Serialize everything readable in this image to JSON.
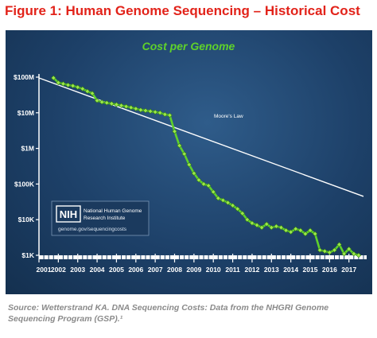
{
  "figure": {
    "title": "Figure 1: Human Genome Sequencing – Historical Cost",
    "source": "Source: Wetterstrand KA. DNA Sequencing Costs: Data from the NHGRI Genome Sequencing Program (GSP).¹"
  },
  "logo": {
    "mark": "NIH",
    "name_line1": "National Human Genome",
    "name_line2": "Research Institute",
    "url": "genome.gov/sequencingcosts"
  },
  "colors": {
    "title": "#e2231a",
    "series_line": "#5fd12b",
    "series_marker": "#9be64a",
    "moores_line": "#ffffff",
    "chart_title": "#5fd12b"
  },
  "chart_data": {
    "type": "line",
    "title": "Cost per Genome",
    "xlabel": "",
    "ylabel": "",
    "y_scale": "log",
    "ylim": [
      1000,
      100000000
    ],
    "xlim": [
      2001.0,
      2017.75
    ],
    "grid": false,
    "y_ticks": [
      {
        "value": 100000000,
        "label": "$100M"
      },
      {
        "value": 10000000,
        "label": "$10M"
      },
      {
        "value": 1000000,
        "label": "$1M"
      },
      {
        "value": 100000,
        "label": "$100K"
      },
      {
        "value": 10000,
        "label": "$10K"
      },
      {
        "value": 1000,
        "label": "$1K"
      }
    ],
    "x_ticks": [
      "2001",
      "2002",
      "2003",
      "2004",
      "2005",
      "2006",
      "2007",
      "2008",
      "2009",
      "2010",
      "2011",
      "2012",
      "2013",
      "2014",
      "2015",
      "2016",
      "2017"
    ],
    "series": [
      {
        "name": "",
        "x": [
          2001.75,
          2002.0,
          2002.25,
          2002.5,
          2002.75,
          2003.0,
          2003.25,
          2003.5,
          2003.75,
          2004.0,
          2004.25,
          2004.5,
          2004.75,
          2005.0,
          2005.25,
          2005.5,
          2005.75,
          2006.0,
          2006.25,
          2006.5,
          2006.75,
          2007.0,
          2007.25,
          2007.5,
          2007.75,
          2008.0,
          2008.25,
          2008.5,
          2008.75,
          2009.0,
          2009.25,
          2009.5,
          2009.75,
          2010.0,
          2010.25,
          2010.5,
          2010.75,
          2011.0,
          2011.25,
          2011.5,
          2011.75,
          2012.0,
          2012.25,
          2012.5,
          2012.75,
          2013.0,
          2013.25,
          2013.5,
          2013.75,
          2014.0,
          2014.25,
          2014.5,
          2014.75,
          2015.0,
          2015.25,
          2015.5,
          2015.75,
          2016.0,
          2016.25,
          2016.5,
          2016.75,
          2017.0,
          2017.25,
          2017.5
        ],
        "values": [
          95000000,
          70000000,
          65000000,
          60000000,
          57000000,
          52000000,
          47000000,
          40000000,
          35000000,
          22000000,
          20000000,
          19000000,
          18000000,
          17000000,
          16000000,
          15000000,
          14000000,
          13000000,
          12000000,
          11500000,
          11000000,
          10500000,
          10000000,
          9000000,
          8500000,
          3000000,
          1200000,
          700000,
          350000,
          200000,
          130000,
          100000,
          90000,
          60000,
          40000,
          35000,
          30000,
          25000,
          20000,
          15000,
          10000,
          8000,
          7000,
          6000,
          7500,
          6000,
          6500,
          6000,
          5000,
          4500,
          5500,
          5000,
          4000,
          5000,
          4000,
          1400,
          1300,
          1200,
          1400,
          2000,
          1100,
          1500,
          1100,
          1000
        ]
      },
      {
        "name": "Moore's Law",
        "x": [
          2001.0,
          2017.75
        ],
        "values": [
          95000000,
          45000
        ]
      }
    ]
  }
}
